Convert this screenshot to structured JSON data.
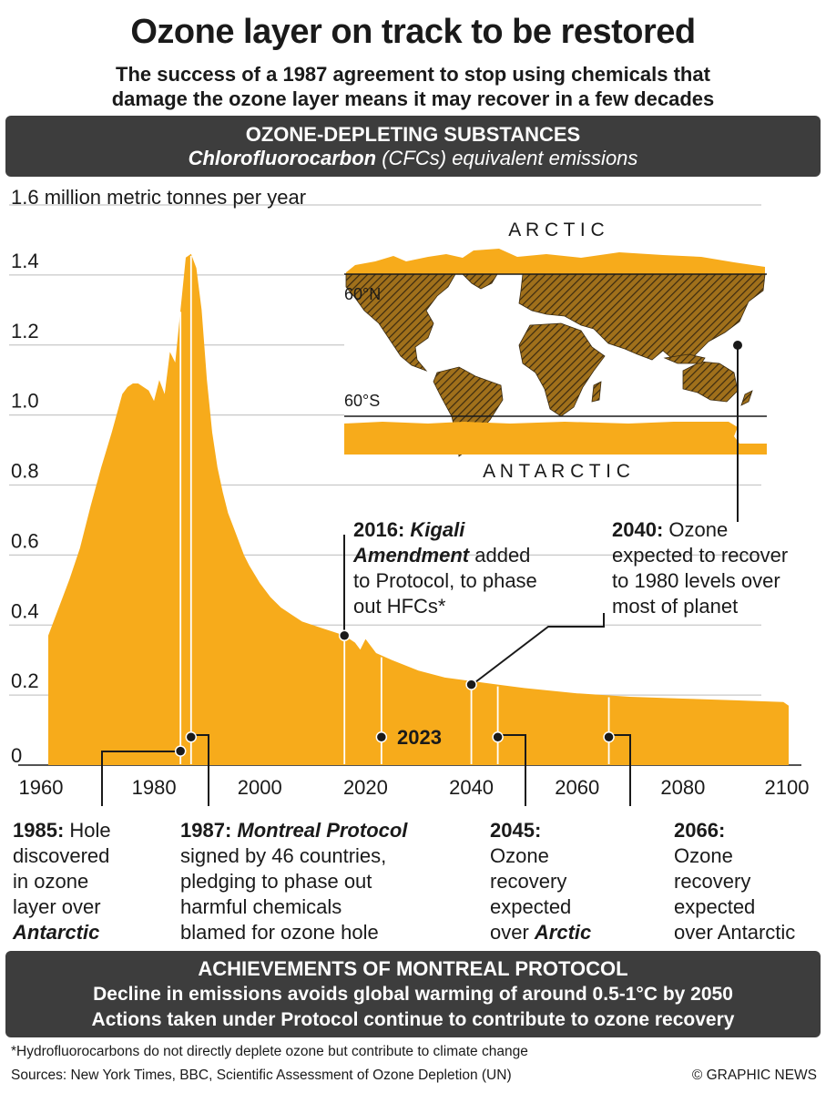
{
  "header": {
    "title": "Ozone layer on track to be restored",
    "subtitle_line1": "The success of a 1987 agreement to stop using chemicals that",
    "subtitle_line2": "damage the ozone layer means it may recover in a few decades"
  },
  "section": {
    "heading": "OZONE-DEPLETING SUBSTANCES",
    "sub_bold": "Chlorofluorocarbon",
    "sub_rest": " (CFCs) equivalent emissions"
  },
  "chart_data": {
    "type": "area",
    "ylabel": "1.6 million metric tonnes per year",
    "ylim": [
      0,
      1.6
    ],
    "xlim": [
      1960,
      2100
    ],
    "y_ticks": [
      "0",
      "0.2",
      "0.4",
      "0.6",
      "0.8",
      "1.0",
      "1.2",
      "1.4"
    ],
    "y_tick_values": [
      0,
      0.2,
      0.4,
      0.6,
      0.8,
      1.0,
      1.2,
      1.4
    ],
    "x_ticks": [
      "1960",
      "1980",
      "2000",
      "2020",
      "2040",
      "2060",
      "2080",
      "2100"
    ],
    "x_tick_values": [
      1960,
      1980,
      2000,
      2020,
      2040,
      2060,
      2080,
      2100
    ],
    "grid": "horizontal",
    "color": "#f7ab1b",
    "x": [
      1960,
      1962,
      1964,
      1966,
      1968,
      1970,
      1972,
      1974,
      1975,
      1976,
      1977,
      1978,
      1979,
      1980,
      1981,
      1982,
      1983,
      1984,
      1985,
      1986,
      1987,
      1988,
      1989,
      1990,
      1991,
      1992,
      1993,
      1994,
      1995,
      1996,
      1997,
      1998,
      2000,
      2002,
      2004,
      2006,
      2008,
      2010,
      2012,
      2014,
      2016,
      2018,
      2019,
      2020,
      2022,
      2025,
      2030,
      2035,
      2040,
      2045,
      2050,
      2060,
      2070,
      2080,
      2090,
      2099,
      2100
    ],
    "y": [
      0.37,
      0.45,
      0.53,
      0.62,
      0.74,
      0.85,
      0.95,
      1.06,
      1.08,
      1.09,
      1.09,
      1.08,
      1.07,
      1.04,
      1.1,
      1.06,
      1.18,
      1.15,
      1.3,
      1.45,
      1.46,
      1.42,
      1.3,
      1.1,
      0.95,
      0.85,
      0.78,
      0.72,
      0.68,
      0.64,
      0.6,
      0.57,
      0.52,
      0.48,
      0.45,
      0.43,
      0.41,
      0.4,
      0.39,
      0.38,
      0.37,
      0.35,
      0.33,
      0.36,
      0.32,
      0.3,
      0.27,
      0.25,
      0.24,
      0.23,
      0.22,
      0.205,
      0.195,
      0.19,
      0.185,
      0.18,
      0.17
    ],
    "event_lines": [
      1985,
      1987,
      2016,
      2023,
      2040,
      2045,
      2066
    ],
    "markers": [
      {
        "x": 1985,
        "y": 0.04
      },
      {
        "x": 1987,
        "y": 0.08
      },
      {
        "x": 2016,
        "y": 0.37
      },
      {
        "x": 2023,
        "y": 0.08,
        "label": "2023"
      },
      {
        "x": 2040,
        "y": 0.23
      },
      {
        "x": 2045,
        "y": 0.08
      },
      {
        "x": 2066,
        "y": 0.08
      }
    ]
  },
  "map": {
    "arctic_label": "A R C T I C",
    "antarctic_label": "A N T A R C T I C",
    "lat_north": "60°N",
    "lat_south": "60°S"
  },
  "annotations": {
    "kigali": {
      "year": "2016:",
      "name": "Kigali Amendment",
      "rest1": " added",
      "rest2": "to Protocol, to phase",
      "rest3": "out HFCs*"
    },
    "y2040": {
      "year": "2040:",
      "rest0": " Ozone",
      "rest1": "expected to recover",
      "rest2": "to 1980 levels over",
      "rest3": "most of planet"
    },
    "y1985": {
      "year": "1985:",
      "rest0": " Hole",
      "rest1": "discovered",
      "rest2": "in ozone",
      "rest3": "layer over",
      "place": "Antarctic"
    },
    "y1987": {
      "year": "1987:",
      "name": "Montreal Protocol",
      "rest1": "signed by 46 countries,",
      "rest2": "pledging to phase out",
      "rest3": "harmful chemicals",
      "rest4": "blamed for ozone hole"
    },
    "y2045": {
      "year": "2045:",
      "rest1": "Ozone",
      "rest2": "recovery",
      "rest3": "expected",
      "rest4": "over ",
      "place": "Arctic"
    },
    "y2066": {
      "year": "2066:",
      "rest1": "Ozone",
      "rest2": "recovery",
      "rest3": "expected",
      "rest4": "over Antarctic"
    }
  },
  "achievements": {
    "heading": "ACHIEVEMENTS OF MONTREAL PROTOCOL",
    "line1": "Decline in emissions avoids global warming of around 0.5-1°C by 2050",
    "line2": "Actions taken under Protocol continue to contribute to ozone recovery"
  },
  "footer": {
    "footnote": "*Hydrofluorocarbons do not directly deplete ozone but contribute to climate change",
    "sources": "Sources: New York Times, BBC, Scientific Assessment of Ozone Depletion (UN)",
    "credit": "© GRAPHIC NEWS"
  }
}
